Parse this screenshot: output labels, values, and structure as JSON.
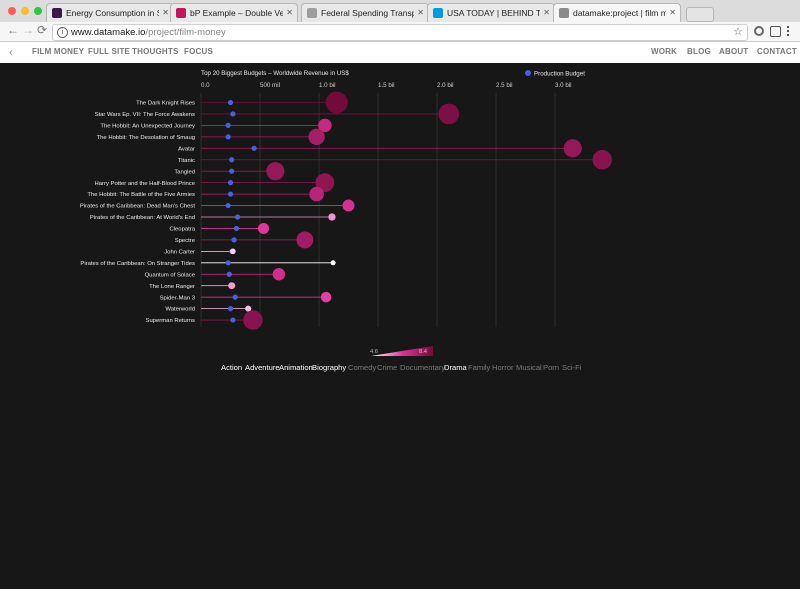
{
  "tabs": [
    {
      "title": "Energy Consumption in Spain",
      "favicon_color": "#3a1a4a"
    },
    {
      "title": "bP Example – Double Vertical B",
      "favicon_color": "#c2185b"
    },
    {
      "title": "Federal Spending Transparency",
      "favicon_color": "#9e9e9e"
    },
    {
      "title": "USA TODAY | BEHIND THE BLO",
      "favicon_color": "#009bde"
    },
    {
      "title": "datamake:project | film money",
      "favicon_color": "#8a8a8a"
    }
  ],
  "address": {
    "host": "www.datamake.io",
    "path": "/project/film-money"
  },
  "site_nav": {
    "back": "‹",
    "left": [
      "FILM MONEY",
      "FULL SITE",
      "THOUGHTS",
      "FOCUS"
    ],
    "right": [
      "WORK",
      "BLOG",
      "ABOUT",
      "CONTACT"
    ]
  },
  "chart_data": {
    "type": "dot-plot",
    "title": "Top 20 Biggest Budgets – Worldwide Revenue in US$",
    "legend": {
      "label": "Production Budget",
      "color": "#4c5ee0",
      "placement": "top-right"
    },
    "x_ticks": [
      {
        "value": 0,
        "label": "0.0"
      },
      {
        "value": 0.5,
        "label": "500 mil"
      },
      {
        "value": 1.0,
        "label": "1.0 bil"
      },
      {
        "value": 1.5,
        "label": "1.5 bil"
      },
      {
        "value": 2.0,
        "label": "2.0 bil"
      },
      {
        "value": 2.5,
        "label": "2.5 bil"
      },
      {
        "value": 3.0,
        "label": "3.0 bil"
      }
    ],
    "xlim": [
      0,
      3.2
    ],
    "x_unit": "billion US$",
    "grid": true,
    "films": [
      {
        "title": "The Dark Knight Rises",
        "budget": 0.25,
        "revenue": 1.15,
        "rating": 8.4
      },
      {
        "title": "Star Wars Ep. VII: The Force Awakens",
        "budget": 0.27,
        "revenue": 2.1,
        "rating": 8.2
      },
      {
        "title": "The Hobbit: An Unexpected Journey",
        "budget": 0.23,
        "revenue": 1.05,
        "rating": 7.0
      },
      {
        "title": "The Hobbit: The Desolation of Smaug",
        "budget": 0.23,
        "revenue": 0.98,
        "rating": 7.5
      },
      {
        "title": "Avatar",
        "budget": 0.45,
        "revenue": 3.15,
        "rating": 7.8
      },
      {
        "title": "Titanic",
        "budget": 0.26,
        "revenue": 3.4,
        "rating": 8.0
      },
      {
        "title": "Tangled",
        "budget": 0.26,
        "revenue": 0.63,
        "rating": 7.8
      },
      {
        "title": "Harry Potter and the Half-Blood Prince",
        "budget": 0.25,
        "revenue": 1.05,
        "rating": 7.9
      },
      {
        "title": "The Hobbit: The Battle of the Five Armies",
        "budget": 0.25,
        "revenue": 0.98,
        "rating": 7.2
      },
      {
        "title": "Pirates of the Caribbean: Dead Man's Chest",
        "budget": 0.23,
        "revenue": 1.25,
        "rating": 6.7
      },
      {
        "title": "Pirates of the Caribbean: At World's End",
        "budget": 0.31,
        "revenue": 1.11,
        "rating": 5.6
      },
      {
        "title": "Cleopatra",
        "budget": 0.3,
        "revenue": 0.53,
        "rating": 6.5
      },
      {
        "title": "Spectre",
        "budget": 0.28,
        "revenue": 0.88,
        "rating": 7.6
      },
      {
        "title": "John Carter",
        "budget": 0.26,
        "revenue": 0.27,
        "rating": 5.0
      },
      {
        "title": "Pirates of the Caribbean: On Stranger Tides",
        "budget": 0.23,
        "revenue": 1.12,
        "rating": 4.6
      },
      {
        "title": "Quantum of Solace",
        "budget": 0.24,
        "revenue": 0.66,
        "rating": 6.8
      },
      {
        "title": "The Lone Ranger",
        "budget": 0.27,
        "revenue": 0.26,
        "rating": 5.5
      },
      {
        "title": "Spider-Man 3",
        "budget": 0.29,
        "revenue": 1.06,
        "rating": 6.4
      },
      {
        "title": "Waterworld",
        "budget": 0.25,
        "revenue": 0.4,
        "rating": 5.2
      },
      {
        "title": "Superman Returns",
        "budget": 0.27,
        "revenue": 0.44,
        "rating": 8.0
      }
    ],
    "color_scale": {
      "min": 4.6,
      "max": 8.4,
      "min_label": "4.6",
      "max_label": "8.4",
      "low_color": "#ffffff",
      "mid_color": "#e0359a",
      "high_color": "#720b38"
    }
  },
  "genres": [
    {
      "label": "Action",
      "active": true
    },
    {
      "label": "Adventure",
      "active": true
    },
    {
      "label": "Animation",
      "active": true
    },
    {
      "label": "Biography",
      "active": true
    },
    {
      "label": "Comedy",
      "active": false
    },
    {
      "label": "Crime",
      "active": false
    },
    {
      "label": "Documentary",
      "active": false
    },
    {
      "label": "Drama",
      "active": true
    },
    {
      "label": "Family",
      "active": false
    },
    {
      "label": "Horror",
      "active": false
    },
    {
      "label": "Musical",
      "active": false
    },
    {
      "label": "Porn",
      "active": false
    },
    {
      "label": "Sci-Fi",
      "active": false
    }
  ]
}
